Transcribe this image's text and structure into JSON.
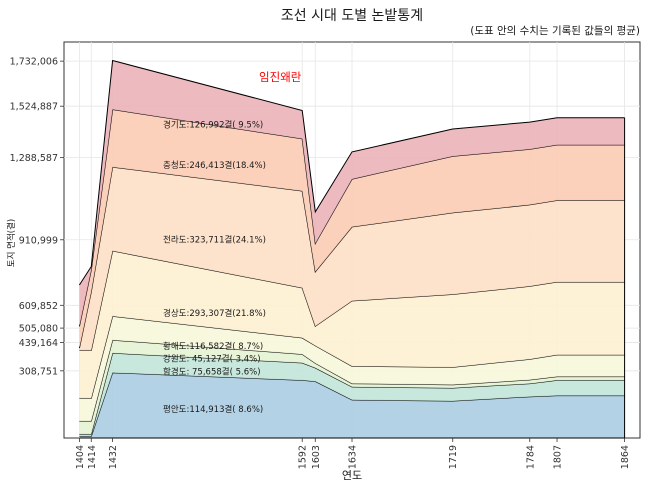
{
  "chart_data": {
    "type": "area",
    "stacked": true,
    "title": "조선 시대 도별 논밭통계",
    "subtitle": "(도표 안의 수치는 기록된 값들의 평균)",
    "xlabel": "연도",
    "ylabel": "토지 면적(결)",
    "x": [
      1404,
      1414,
      1432,
      1592,
      1603,
      1634,
      1719,
      1784,
      1807,
      1864
    ],
    "x_ticks": [
      "1404",
      "1414",
      "1432",
      "1592",
      "1603",
      "1634",
      "1719",
      "1784",
      "1807",
      "1864"
    ],
    "y_ticks": [
      308751,
      439164,
      505080,
      609852,
      910999,
      1288587,
      1524887,
      1732006
    ],
    "y_tick_labels": [
      "308,751",
      "439,164",
      "505,080",
      "609,852",
      "910,999",
      "1,288,587",
      "1,524,887",
      "1,732,006"
    ],
    "ylim": [
      0,
      1820000
    ],
    "grid": true,
    "series": [
      {
        "name": "평안도",
        "color": "#abcde3",
        "label": "평안도:114,913결( 8.6%)",
        "values": [
          8000,
          8000,
          300000,
          265000,
          260000,
          175000,
          170000,
          190000,
          195000,
          195000
        ]
      },
      {
        "name": "함경도",
        "color": "#c2e5da",
        "label": "함경도: 75,658결( 5.6%)",
        "values": [
          10000,
          10000,
          90000,
          80000,
          62000,
          60000,
          60000,
          60000,
          70000,
          70000
        ]
      },
      {
        "name": "강원도",
        "color": "#e5f3d4",
        "label": "강원도: 45,127결( 3.4%)",
        "values": [
          60000,
          60000,
          60000,
          40000,
          22000,
          15000,
          15000,
          17000,
          17000,
          17000
        ]
      },
      {
        "name": "황해도",
        "color": "#f6f7d9",
        "label": "황해도:116,582결( 8.7%)",
        "values": [
          105000,
          105000,
          110000,
          75000,
          80000,
          80000,
          80000,
          95000,
          100000,
          100000
        ]
      },
      {
        "name": "경상도",
        "color": "#fdf0d2",
        "label": "경상도:293,307결(21.8%)",
        "values": [
          220000,
          220000,
          300000,
          230000,
          90000,
          300000,
          335000,
          335000,
          335000,
          335000
        ]
      },
      {
        "name": "전라도",
        "color": "#fde0c6",
        "label": "전라도:323,711결(24.1%)",
        "values": [
          10000,
          270000,
          385000,
          445000,
          250000,
          340000,
          375000,
          375000,
          375000,
          375000
        ]
      },
      {
        "name": "충청도",
        "color": "#fbccb4",
        "label": "충청도:246,413결(18.4%)",
        "values": [
          100000,
          100000,
          265000,
          240000,
          130000,
          220000,
          260000,
          255000,
          255000,
          255000
        ]
      },
      {
        "name": "경기도",
        "color": "#eab3b8",
        "label": "경기도:126,992결( 9.5%)",
        "values": [
          190000,
          15000,
          225000,
          130000,
          145000,
          125000,
          125000,
          125000,
          125000,
          125000
        ]
      }
    ],
    "annotations": [
      {
        "text": "임진왜란",
        "x": 1592,
        "y": 1640000,
        "color": "#ff0000"
      }
    ]
  }
}
